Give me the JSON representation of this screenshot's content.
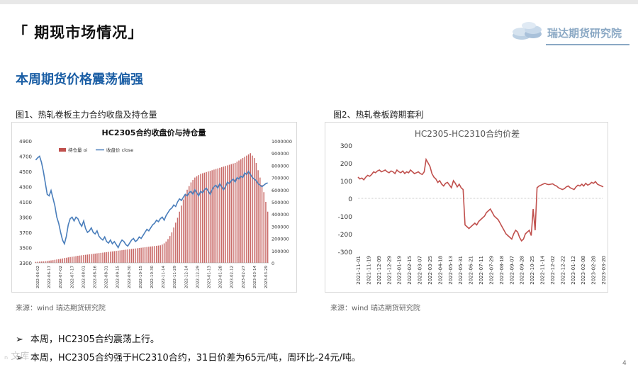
{
  "header": {
    "title": "「 期现市场情况」"
  },
  "logo": {
    "text": "瑞达期货研究院"
  },
  "section_title": "本周期货价格震荡偏强",
  "figures": {
    "fig1_label": "图1、热轧卷板主力合约收盘及持仓量",
    "fig2_label": "图2、热轧卷板跨期套利"
  },
  "sources": {
    "left": "来源：wind   瑞达期货研究院",
    "right": "来源：wind   瑞达期货研究院"
  },
  "bullets": [
    "本周，HC2305合约震荡上行。",
    "本周，HC2305合约强于HC2310合约，31日价差为65元/吨，周环比-24元/吨。"
  ],
  "page_number": "4",
  "watermark": "ₙ 文库",
  "colors": {
    "bars": "#c0504d",
    "line": "#4a7ebb",
    "spread": "#c0504d",
    "title_blue": "#1c5fa5"
  },
  "chart_data": [
    {
      "type": "bar",
      "title": "HC2305合约收盘价与持仓量",
      "legend": [
        "持仓量 oi",
        "收盘价 close"
      ],
      "legend_position": "top-left",
      "grid": false,
      "y_left_ticks": [
        "4900",
        "4700",
        "4500",
        "4300",
        "4100",
        "3900",
        "3700",
        "3500",
        "3300"
      ],
      "y_left_lim": [
        3300,
        4900
      ],
      "y_right_ticks": [
        "1000000",
        "900000",
        "800000",
        "700000",
        "600000",
        "500000",
        "400000",
        "300000",
        "200000",
        "100000",
        "0"
      ],
      "y_right_lim": [
        0,
        1000000
      ],
      "x_ticks": [
        "2022-06-02",
        "2022-06-17",
        "2022-07-02",
        "2022-07-17",
        "2022-08-01",
        "2022-08-16",
        "2022-08-31",
        "2022-09-15",
        "2022-09-30",
        "2022-10-15",
        "2022-10-30",
        "2022-11-14",
        "2022-11-29",
        "2022-12-14",
        "2022-12-29",
        "2023-01-13",
        "2023-01-28",
        "2023-02-12",
        "2023-02-27",
        "2023-03-14",
        "2023-03-29"
      ],
      "series": [
        {
          "name": "持仓量 oi",
          "kind": "bar",
          "axis": "right",
          "values": [
            8000,
            9000,
            10000,
            11000,
            12000,
            14000,
            16000,
            18000,
            20000,
            22000,
            25000,
            28000,
            30000,
            33000,
            36000,
            40000,
            42000,
            45000,
            48000,
            50000,
            52000,
            55000,
            58000,
            60000,
            62000,
            64000,
            66000,
            68000,
            70000,
            72000,
            74000,
            76000,
            78000,
            80000,
            82000,
            84000,
            86000,
            88000,
            90000,
            92000,
            94000,
            96000,
            98000,
            100000,
            102000,
            104000,
            106000,
            108000,
            110000,
            112000,
            114000,
            116000,
            118000,
            120000,
            122000,
            124000,
            126000,
            128000,
            130000,
            132000,
            134000,
            136000,
            138000,
            140000,
            142000,
            144000,
            150000,
            160000,
            175000,
            195000,
            220000,
            250000,
            290000,
            330000,
            370000,
            420000,
            470000,
            520000,
            560000,
            600000,
            630000,
            660000,
            680000,
            700000,
            710000,
            720000,
            730000,
            735000,
            740000,
            745000,
            750000,
            755000,
            760000,
            765000,
            770000,
            775000,
            780000,
            785000,
            790000,
            795000,
            800000,
            805000,
            810000,
            815000,
            820000,
            830000,
            840000,
            850000,
            860000,
            870000,
            880000,
            890000,
            900000,
            880000,
            860000,
            820000,
            760000,
            700000,
            640000,
            580000,
            500000,
            420000
          ]
        },
        {
          "name": "收盘价 close",
          "kind": "line",
          "axis": "left",
          "values": [
            4650,
            4680,
            4700,
            4620,
            4500,
            4350,
            4200,
            4180,
            4250,
            4150,
            4050,
            3900,
            3820,
            3700,
            3600,
            3550,
            3650,
            3800,
            3880,
            3900,
            3850,
            3900,
            3880,
            3820,
            3780,
            3850,
            3750,
            3700,
            3720,
            3760,
            3700,
            3680,
            3720,
            3650,
            3620,
            3600,
            3640,
            3580,
            3560,
            3600,
            3550,
            3580,
            3540,
            3500,
            3560,
            3600,
            3580,
            3540,
            3520,
            3560,
            3600,
            3620,
            3580,
            3600,
            3640,
            3620,
            3660,
            3700,
            3740,
            3720,
            3760,
            3800,
            3820,
            3860,
            3840,
            3880,
            3900,
            3860,
            3920,
            3960,
            4000,
            4020,
            4060,
            4040,
            4100,
            4140,
            4120,
            4160,
            4200,
            4180,
            4220,
            4240,
            4200,
            4260,
            4220,
            4180,
            4240,
            4220,
            4260,
            4280,
            4240,
            4200,
            4260,
            4300,
            4320,
            4280,
            4340,
            4300,
            4260,
            4300,
            4360,
            4340,
            4380,
            4400,
            4360,
            4420,
            4400,
            4440,
            4420,
            4480,
            4460,
            4500,
            4460,
            4420,
            4400,
            4380,
            4340,
            4320,
            4300,
            4320,
            4340,
            4350
          ]
        }
      ]
    },
    {
      "type": "line",
      "title": "HC2305-HC2310合约价差",
      "grid": false,
      "ylim": [
        -300,
        300
      ],
      "y_ticks": [
        "300",
        "200",
        "100",
        "0",
        "-100",
        "-200",
        "-300"
      ],
      "x_ticks": [
        "2021-11-01",
        "2021-11-19",
        "2021-12-09",
        "2021-12-29",
        "2022-01-19",
        "2022-02-15",
        "2022-03-07",
        "2022-03-25",
        "2022-04-18",
        "2022-05-13",
        "2022-05-31",
        "2022-06-21",
        "2022-07-11",
        "2022-07-29",
        "2022-08-18",
        "2022-09-07",
        "2022-09-28",
        "2022-10-25",
        "2022-11-14",
        "2022-12-02",
        "2022-12-22",
        "2023-01-12",
        "2023-02-08",
        "2023-02-28",
        "2023-03-20"
      ],
      "series": [
        {
          "name": "HC2305-HC2310",
          "values": [
            120,
            110,
            115,
            105,
            120,
            130,
            125,
            135,
            150,
            145,
            155,
            160,
            150,
            155,
            160,
            150,
            145,
            155,
            150,
            140,
            160,
            150,
            145,
            155,
            140,
            150,
            145,
            160,
            150,
            140,
            145,
            150,
            140,
            135,
            150,
            220,
            200,
            180,
            140,
            120,
            110,
            90,
            100,
            80,
            70,
            85,
            90,
            75,
            60,
            100,
            85,
            65,
            80,
            60,
            50,
            -150,
            -160,
            -170,
            -160,
            -150,
            -140,
            -150,
            -130,
            -120,
            -110,
            -100,
            -80,
            -70,
            -60,
            -80,
            -100,
            -110,
            -120,
            -140,
            -160,
            -180,
            -200,
            -210,
            -220,
            -230,
            -200,
            -180,
            -190,
            -220,
            -240,
            -230,
            -200,
            -190,
            -180,
            -210,
            -60,
            -180,
            60,
            70,
            75,
            80,
            85,
            80,
            78,
            80,
            82,
            75,
            70,
            60,
            55,
            50,
            55,
            65,
            70,
            60,
            55,
            50,
            65,
            75,
            70,
            80,
            70,
            85,
            75,
            80,
            90,
            85,
            95,
            80,
            75,
            70,
            65
          ]
        }
      ]
    }
  ]
}
